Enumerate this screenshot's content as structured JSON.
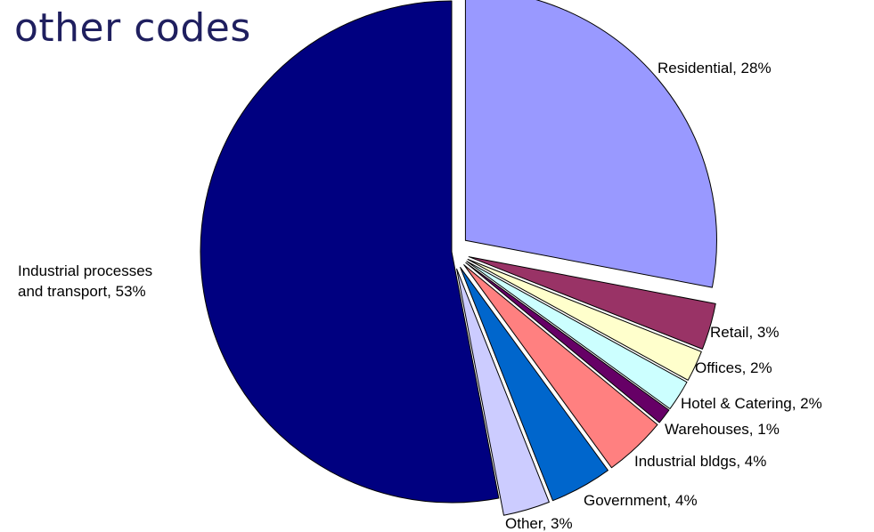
{
  "title": "other codes",
  "chart_data": {
    "type": "pie",
    "title": "other codes",
    "slices": [
      {
        "label": "Residential",
        "value": 28,
        "color": "#9999ff",
        "exploded": true,
        "label_text": "Residential, 28%"
      },
      {
        "label": "Retail",
        "value": 3,
        "color": "#993366",
        "exploded": true,
        "label_text": "Retail, 3%"
      },
      {
        "label": "Offices",
        "value": 2,
        "color": "#ffffcc",
        "exploded": true,
        "label_text": "Offices, 2%"
      },
      {
        "label": "Hotel & Catering",
        "value": 2,
        "color": "#ccffff",
        "exploded": true,
        "label_text": "Hotel & Catering, 2%"
      },
      {
        "label": "Warehouses",
        "value": 1,
        "color": "#660066",
        "exploded": true,
        "label_text": "Warehouses, 1%"
      },
      {
        "label": "Industrial bldgs",
        "value": 4,
        "color": "#ff8080",
        "exploded": true,
        "label_text": "Industrial bldgs, 4%"
      },
      {
        "label": "Government",
        "value": 4,
        "color": "#0066cc",
        "exploded": true,
        "label_text": "Government, 4%"
      },
      {
        "label": "Other",
        "value": 3,
        "color": "#ccccff",
        "exploded": true,
        "label_text": "Other, 3%"
      },
      {
        "label": "Industrial processes and transport",
        "value": 53,
        "color": "#000080",
        "exploded": false,
        "label_lines": [
          "Industrial processes",
          "and transport, 53%"
        ]
      }
    ],
    "legend": "none",
    "start_angle": "12 o'clock",
    "direction": "clockwise"
  }
}
